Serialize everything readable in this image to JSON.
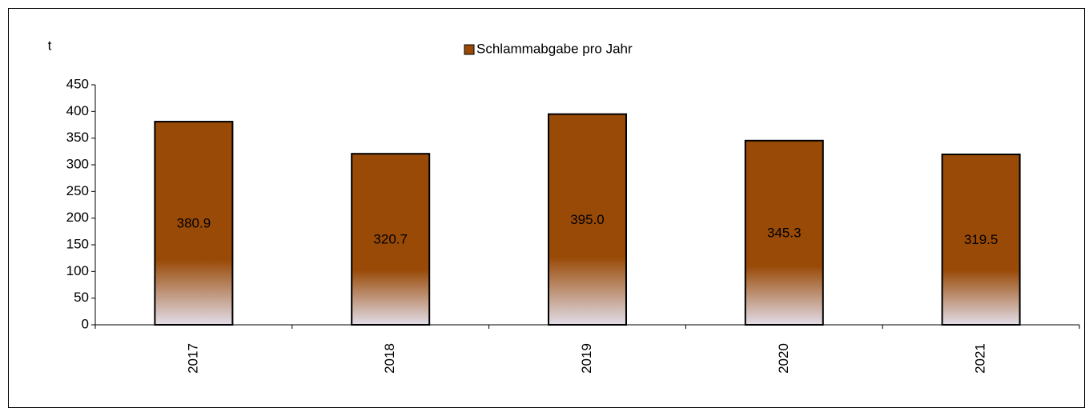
{
  "chart_data": {
    "type": "bar",
    "y_label": "t",
    "categories": [
      "2017",
      "2018",
      "2019",
      "2020",
      "2021"
    ],
    "series": [
      {
        "name": "Schlammabgabe pro Jahr",
        "color": "#994a07",
        "values": [
          380.9,
          320.7,
          395.0,
          345.3,
          319.5
        ],
        "value_labels": [
          "380.9",
          "320.7",
          "395.0",
          "345.3",
          "319.5"
        ]
      }
    ],
    "ylim": [
      0,
      450
    ],
    "yticks": [
      0,
      50,
      100,
      150,
      200,
      250,
      300,
      350,
      400,
      450
    ],
    "legend": "top",
    "grid": false
  }
}
